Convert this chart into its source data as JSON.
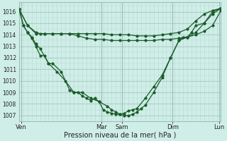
{
  "xlabel": "Pression niveau de la mer( hPa )",
  "ylim": [
    1006.5,
    1016.8
  ],
  "yticks": [
    1007,
    1008,
    1009,
    1010,
    1011,
    1012,
    1013,
    1014,
    1015,
    1016
  ],
  "xlim": [
    0,
    48
  ],
  "bg_color": "#d0eee8",
  "grid_color_major": "#9bbfb8",
  "grid_color_minor": "#b8d8d2",
  "line_color": "#1a5c2a",
  "day_labels": [
    "Ven",
    "Mar",
    "Sam",
    "Dim",
    "Lun"
  ],
  "day_positions": [
    0.5,
    19.5,
    24.5,
    36.5,
    47.5
  ],
  "day_vlines": [
    0.5,
    19.5,
    24.5,
    36.5,
    47.5
  ],
  "series_flat1_x": [
    0,
    2,
    4,
    5,
    6,
    8,
    10,
    12,
    14,
    16,
    18,
    20,
    22,
    24,
    26,
    28,
    30,
    32,
    34,
    36,
    38,
    40,
    42,
    44,
    46,
    48
  ],
  "series_flat1_y": [
    1016.2,
    1014.8,
    1014.2,
    1014.1,
    1014.1,
    1014.1,
    1014.1,
    1014.1,
    1014.1,
    1014.1,
    1014.1,
    1014.1,
    1014.0,
    1014.0,
    1014.0,
    1013.9,
    1013.9,
    1013.9,
    1014.0,
    1014.1,
    1014.2,
    1014.5,
    1015.2,
    1015.8,
    1016.1,
    1016.3
  ],
  "series_flat2_x": [
    0,
    2,
    4,
    6,
    8,
    10,
    12,
    14,
    16,
    18,
    20,
    22,
    24,
    26,
    28,
    30,
    32,
    34,
    36,
    38,
    40,
    42,
    44,
    46,
    48
  ],
  "series_flat2_y": [
    1016.2,
    1014.8,
    1014.1,
    1014.1,
    1014.1,
    1014.1,
    1014.1,
    1013.9,
    1013.7,
    1013.6,
    1013.6,
    1013.5,
    1013.5,
    1013.5,
    1013.5,
    1013.5,
    1013.5,
    1013.6,
    1013.6,
    1013.7,
    1013.8,
    1014.0,
    1014.3,
    1014.8,
    1016.1
  ],
  "series_deep1_x": [
    0,
    1,
    2,
    3,
    4,
    5,
    6,
    7,
    8,
    10,
    12,
    13,
    14,
    15,
    16,
    17,
    18,
    19,
    20,
    21,
    22,
    23,
    24,
    25,
    26,
    27,
    28,
    30,
    32,
    34,
    36,
    38,
    40,
    42,
    44,
    46,
    48
  ],
  "series_deep1_y": [
    1016.2,
    1014.8,
    1014.2,
    1013.7,
    1013.0,
    1012.2,
    1012.2,
    1011.5,
    1011.5,
    1010.8,
    1009.2,
    1009.0,
    1009.0,
    1008.7,
    1008.5,
    1008.3,
    1008.5,
    1008.2,
    1007.5,
    1007.3,
    1007.2,
    1007.1,
    1007.1,
    1007.2,
    1007.4,
    1007.5,
    1007.6,
    1008.5,
    1009.5,
    1010.5,
    1012.0,
    1013.5,
    1013.8,
    1014.2,
    1015.0,
    1016.0,
    1016.3
  ],
  "series_deep2_x": [
    0,
    1,
    2,
    3,
    4,
    5,
    7,
    9,
    11,
    13,
    15,
    17,
    19,
    21,
    22,
    23,
    24,
    25,
    26,
    27,
    28,
    29,
    30,
    32,
    34,
    36,
    38,
    39,
    40,
    41,
    42,
    44,
    46,
    48
  ],
  "series_deep2_y": [
    1016.2,
    1014.8,
    1014.2,
    1013.8,
    1013.2,
    1012.8,
    1011.5,
    1010.8,
    1010.0,
    1009.0,
    1009.0,
    1008.5,
    1008.2,
    1007.8,
    1007.5,
    1007.3,
    1007.1,
    1007.0,
    1007.0,
    1007.1,
    1007.3,
    1007.6,
    1007.9,
    1009.0,
    1010.3,
    1012.0,
    1013.5,
    1013.8,
    1013.8,
    1014.2,
    1014.8,
    1015.0,
    1015.8,
    1016.3
  ]
}
